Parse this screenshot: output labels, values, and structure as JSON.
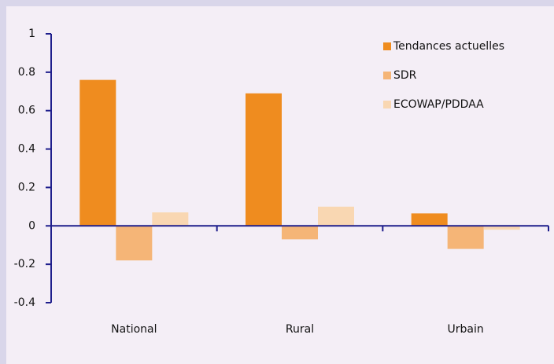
{
  "chart_data": {
    "type": "bar",
    "categories": [
      "National",
      "Rural",
      "Urbain"
    ],
    "series": [
      {
        "name": "Tendances actuelles",
        "color": "#ef8c1f",
        "values": [
          0.76,
          0.69,
          0.065
        ]
      },
      {
        "name": "SDR",
        "color": "#f5b577",
        "values": [
          -0.18,
          -0.07,
          -0.12
        ]
      },
      {
        "name": "ECOWAP/PDDAA",
        "color": "#f9d7b2",
        "values": [
          0.07,
          0.1,
          -0.02
        ]
      }
    ],
    "ylim": [
      -0.4,
      1
    ],
    "yticks": [
      -0.4,
      -0.2,
      0,
      0.2,
      0.4,
      0.6,
      0.8,
      1
    ],
    "grid": false,
    "legend": "top-right"
  }
}
